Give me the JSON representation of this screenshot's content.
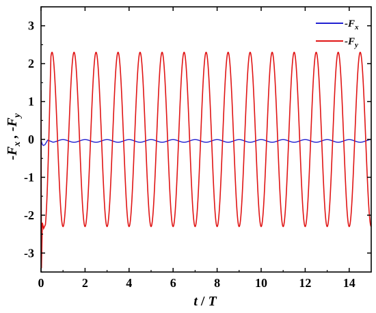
{
  "chart_data": {
    "type": "line",
    "xlabel": "t / T",
    "ylabel": "-Fx , -Fy",
    "xlim": [
      0,
      15
    ],
    "ylim": [
      -3.5,
      3.5
    ],
    "x_ticks": [
      0,
      2,
      4,
      6,
      8,
      10,
      12,
      14
    ],
    "y_ticks": [
      3,
      2,
      1,
      0,
      -1,
      -2,
      -3
    ],
    "grid": false,
    "legend_position": "top-right",
    "series": [
      {
        "name": "-Fx",
        "color": "#1f1fd1",
        "model": {
          "kind": "oscillation",
          "mean": -0.04,
          "amplitude": 0.035,
          "period": 1.0,
          "phase_deg": 90,
          "transient": [
            [
              0,
              0
            ],
            [
              0.05,
              -0.12
            ],
            [
              0.1,
              -0.16
            ],
            [
              0.18,
              -0.14
            ],
            [
              0.3,
              -0.02
            ]
          ]
        }
      },
      {
        "name": "-Fy",
        "color": "#e01414",
        "model": {
          "kind": "oscillation",
          "mean": 0.0,
          "amplitude": 2.3,
          "period": 1.0,
          "phase_deg": -90,
          "transient": [
            [
              0,
              1.3
            ],
            [
              0.02,
              -3.4
            ],
            [
              0.06,
              -2.2
            ],
            [
              0.12,
              -2.35
            ],
            [
              0.2,
              -2.25
            ]
          ]
        }
      }
    ]
  },
  "axes": {
    "x_tick_labels": [
      "0",
      "2",
      "4",
      "6",
      "8",
      "10",
      "12",
      "14"
    ],
    "y_tick_labels": [
      "3",
      "2",
      "1",
      "0",
      "-1",
      "-2",
      "-3"
    ]
  }
}
